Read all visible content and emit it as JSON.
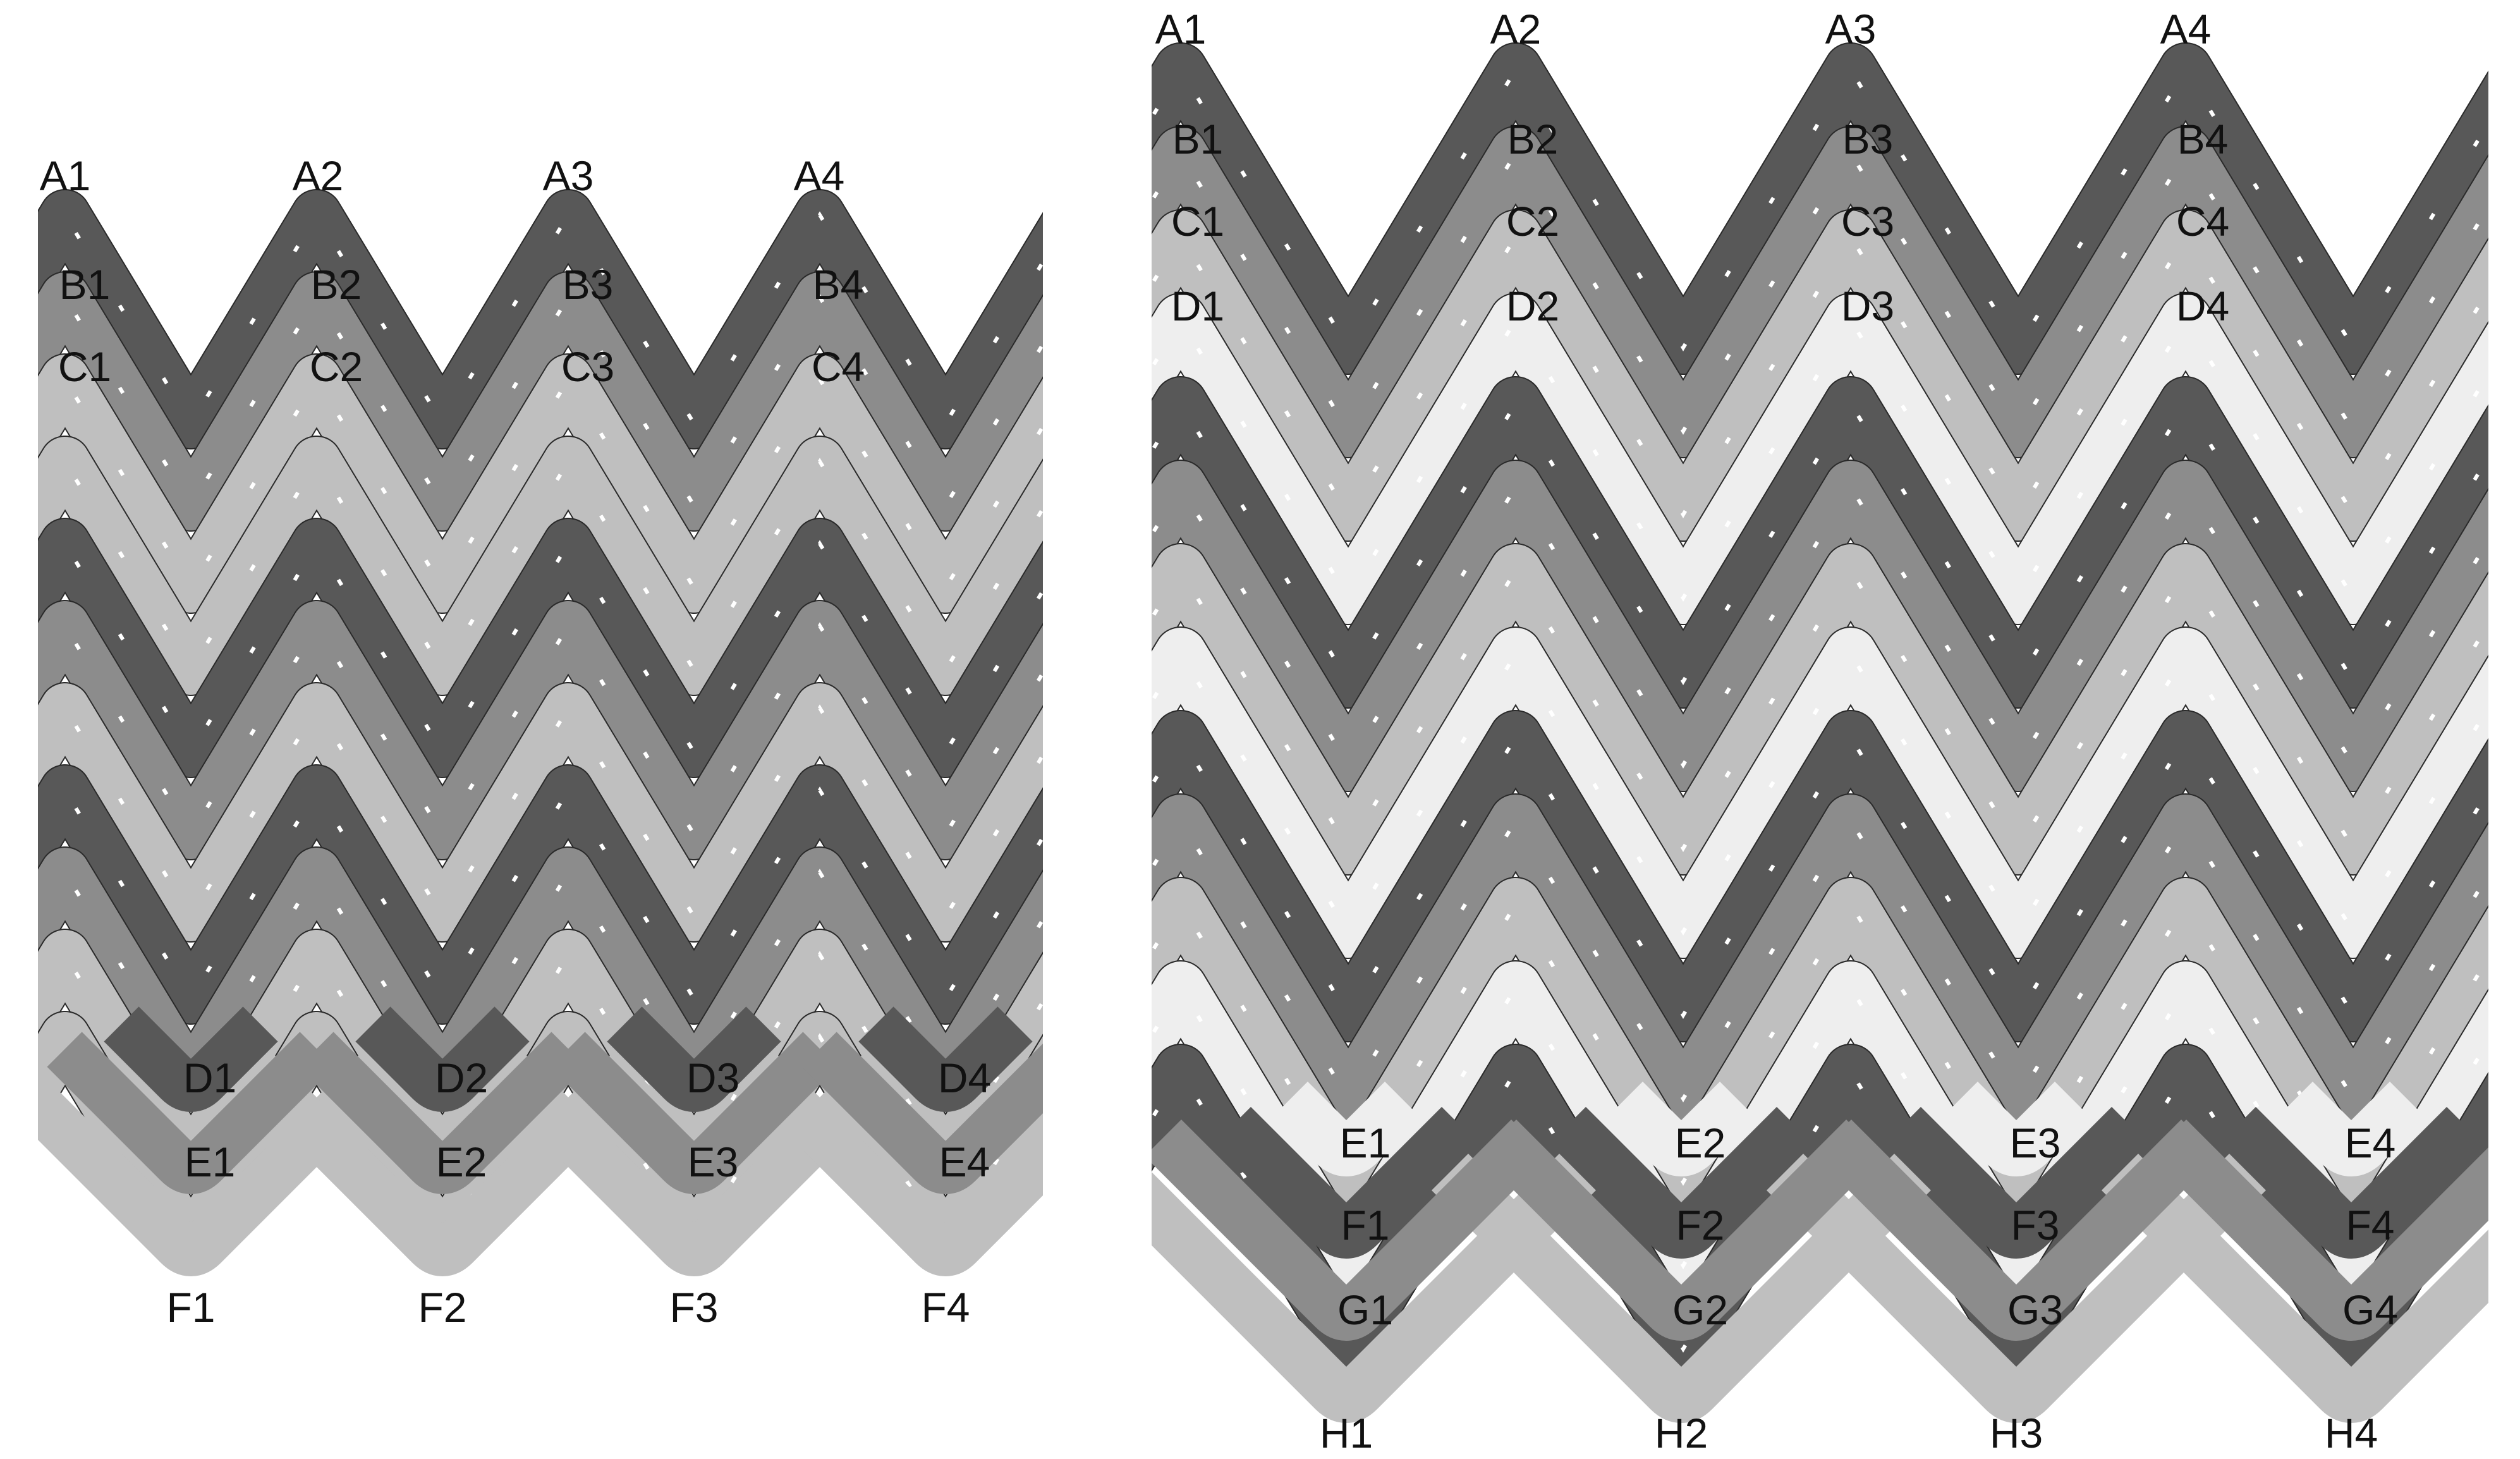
{
  "colors": {
    "background": "#ffffff",
    "dark": "#585858",
    "medium": "#8c8c8c",
    "light": "#bfbfbf",
    "lightest": "#eeeeee",
    "edge": "#2a2a2a",
    "label": "#111111"
  },
  "panels": [
    {
      "name": "left-weave-panel",
      "top_labels": [
        "A1",
        "A2",
        "A3",
        "A4"
      ],
      "row_labels": [
        [
          "B1",
          "B2",
          "B3",
          "B4"
        ],
        [
          "C1",
          "C2",
          "C3",
          "C4"
        ]
      ],
      "bottom_row_labels": [
        [
          "D1",
          "D2",
          "D3",
          "D4"
        ],
        [
          "E1",
          "E2",
          "E3",
          "E4"
        ]
      ],
      "bottom_labels": [
        "F1",
        "F2",
        "F3",
        "F4"
      ]
    },
    {
      "name": "right-weave-panel",
      "top_labels": [
        "A1",
        "A2",
        "A3",
        "A4"
      ],
      "row_labels": [
        [
          "B1",
          "B2",
          "B3",
          "B4"
        ],
        [
          "C1",
          "C2",
          "C3",
          "C4"
        ],
        [
          "D1",
          "D2",
          "D3",
          "D4"
        ]
      ],
      "bottom_row_labels": [
        [
          "E1",
          "E2",
          "E3",
          "E4"
        ],
        [
          "F1",
          "F2",
          "F3",
          "F4"
        ],
        [
          "G1",
          "G2",
          "G3",
          "G4"
        ]
      ],
      "bottom_labels": [
        "H1",
        "H2",
        "H3",
        "H4"
      ]
    }
  ]
}
